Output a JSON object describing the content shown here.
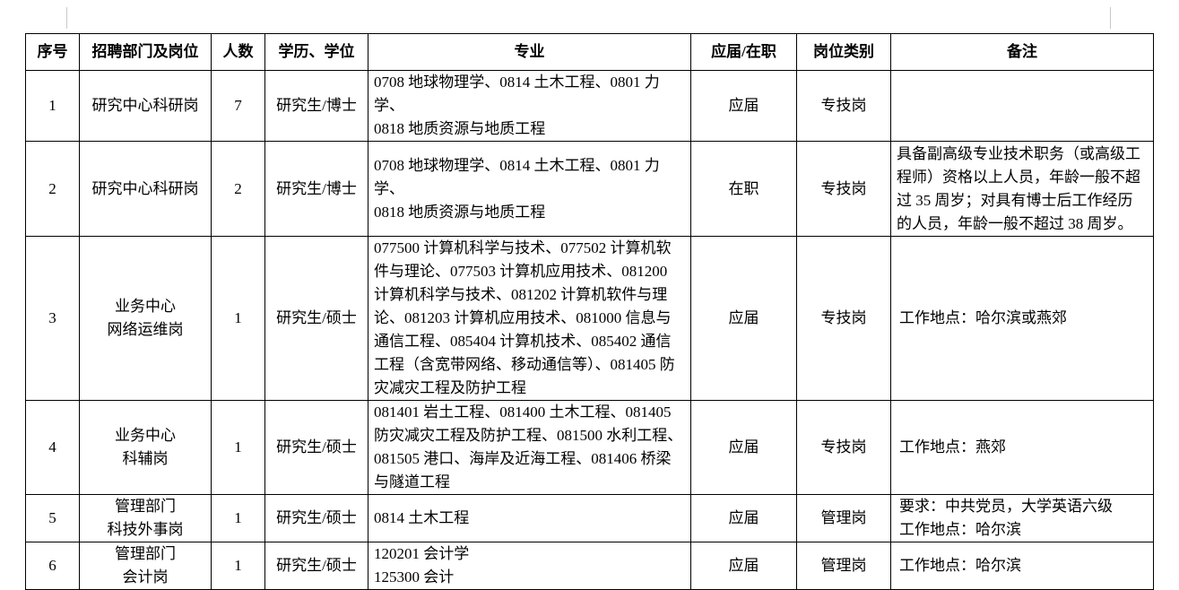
{
  "table": {
    "headers": [
      "序号",
      "招聘部门及岗位",
      "人数",
      "学历、学位",
      "专业",
      "应届/在职",
      "岗位类别",
      "备注"
    ],
    "rows": [
      {
        "no": "1",
        "dept": "研究中心科研岗",
        "count": "7",
        "degree": "研究生/博士",
        "major": "0708 地球物理学、0814 土木工程、0801 力学、\n0818 地质资源与地质工程",
        "status": "应届",
        "type": "专技岗",
        "note": ""
      },
      {
        "no": "2",
        "dept": "研究中心科研岗",
        "count": "2",
        "degree": "研究生/博士",
        "major": "0708 地球物理学、0814 土木工程、0801 力学、\n0818 地质资源与地质工程",
        "status": "在职",
        "type": "专技岗",
        "note": "具备副高级专业技术职务（或高级工\n程师）资格以上人员，年龄一般不超\n过 35 周岁；对具有博士后工作经历\n的人员，年龄一般不超过 38 周岁。"
      },
      {
        "no": "3",
        "dept": "业务中心\n网络运维岗",
        "count": "1",
        "degree": "研究生/硕士",
        "major": "077500 计算机科学与技术、077502 计算机软\n件与理论、077503 计算机应用技术、081200\n计算机科学与技术、081202 计算机软件与理\n论、081203 计算机应用技术、081000 信息与\n通信工程、085404 计算机技术、085402 通信\n工程（含宽带网络、移动通信等）、081405 防\n灾减灾工程及防护工程",
        "status": "应届",
        "type": "专技岗",
        "note": "工作地点：哈尔滨或燕郊"
      },
      {
        "no": "4",
        "dept": "业务中心\n科辅岗",
        "count": "1",
        "degree": "研究生/硕士",
        "major": "081401 岩土工程、081400 土木工程、081405\n防灾减灾工程及防护工程、081500 水利工程、\n081505 港口、海岸及近海工程、081406 桥梁\n与隧道工程",
        "status": "应届",
        "type": "专技岗",
        "note": "工作地点：燕郊"
      },
      {
        "no": "5",
        "dept": "管理部门\n科技外事岗",
        "count": "1",
        "degree": "研究生/硕士",
        "major": "0814 土木工程",
        "status": "应届",
        "type": "管理岗",
        "note": "要求：中共党员，大学英语六级\n工作地点：哈尔滨"
      },
      {
        "no": "6",
        "dept": "管理部门\n会计岗",
        "count": "1",
        "degree": "研究生/硕士",
        "major": "120201 会计学\n125300 会计",
        "status": "应届",
        "type": "管理岗",
        "note": "工作地点：哈尔滨"
      }
    ]
  }
}
